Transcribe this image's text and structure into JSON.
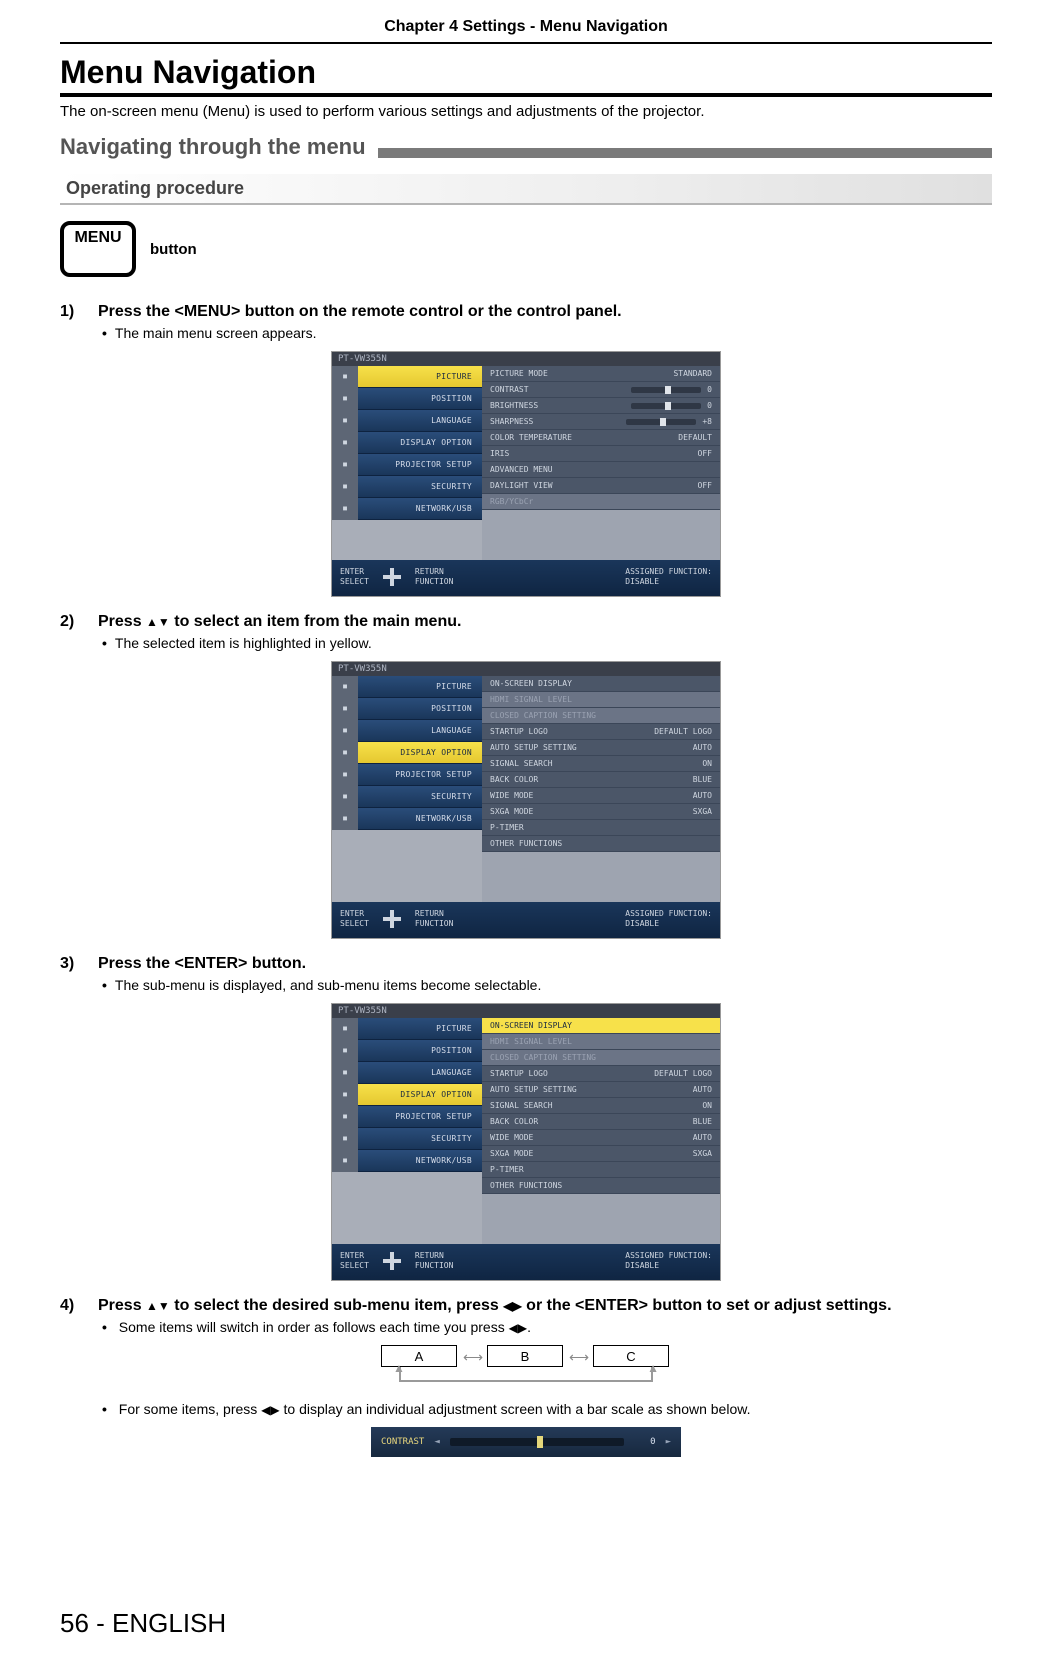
{
  "chapter_bar": "Chapter 4   Settings - Menu Navigation",
  "title": "Menu Navigation",
  "intro": "The on-screen menu (Menu) is used to perform various settings and adjustments of the projector.",
  "h2_nav": "Navigating through the menu",
  "h3_op": "Operating procedure",
  "menu_button_text": "MENU",
  "menu_button_label": "button",
  "steps": {
    "s1": {
      "num": "1)",
      "text": "Press the <MENU> button on the remote control or the control panel.",
      "bullet": "The main menu screen appears."
    },
    "s2": {
      "num": "2)",
      "pre": "Press ",
      "post": " to select an item from the main menu.",
      "bullet": "The selected item is highlighted in yellow."
    },
    "s3": {
      "num": "3)",
      "text": "Press the <ENTER> button.",
      "bullet": "The sub-menu is displayed, and sub-menu items become selectable."
    },
    "s4": {
      "num": "4)",
      "pre": "Press ",
      "mid": " to select the desired sub-menu item, press ",
      "post": " or the <ENTER> button to set or adjust settings.",
      "bullet1_pre": "Some items will switch in order as follows each time you press ",
      "bullet1_post": ".",
      "bullet2_pre": "For some items, press ",
      "bullet2_post": " to display an individual adjustment screen with a bar scale as shown below."
    }
  },
  "osd": {
    "model": "PT-VW355N",
    "side": [
      "PICTURE",
      "POSITION",
      "LANGUAGE",
      "DISPLAY OPTION",
      "PROJECTOR SETUP",
      "SECURITY",
      "NETWORK/USB"
    ],
    "fig1_right": [
      {
        "l": "PICTURE MODE",
        "v": "STANDARD"
      },
      {
        "l": "CONTRAST",
        "bar": true,
        "v": "0"
      },
      {
        "l": "BRIGHTNESS",
        "bar": true,
        "v": "0"
      },
      {
        "l": "SHARPNESS",
        "bar": true,
        "v": "+8"
      },
      {
        "l": "COLOR TEMPERATURE",
        "v": "DEFAULT"
      },
      {
        "l": "IRIS",
        "v": "OFF"
      },
      {
        "l": "ADVANCED MENU",
        "v": ""
      },
      {
        "l": "DAYLIGHT VIEW",
        "v": "OFF"
      },
      {
        "l": "RGB/YCbCr",
        "v": "",
        "dim": true
      }
    ],
    "fig23_right": [
      {
        "l": "ON-SCREEN DISPLAY",
        "v": ""
      },
      {
        "l": "HDMI SIGNAL LEVEL",
        "v": "",
        "dim": true
      },
      {
        "l": "CLOSED CAPTION SETTING",
        "v": "",
        "dim": true
      },
      {
        "l": "STARTUP LOGO",
        "v": "DEFAULT LOGO"
      },
      {
        "l": "AUTO SETUP SETTING",
        "v": "AUTO"
      },
      {
        "l": "SIGNAL SEARCH",
        "v": "ON"
      },
      {
        "l": "BACK COLOR",
        "v": "BLUE"
      },
      {
        "l": "WIDE MODE",
        "v": "AUTO"
      },
      {
        "l": "SXGA MODE",
        "v": "SXGA"
      },
      {
        "l": "P-TIMER",
        "v": ""
      },
      {
        "l": "OTHER FUNCTIONS",
        "v": ""
      }
    ],
    "foot": {
      "enter": "ENTER",
      "select": "SELECT",
      "return": "RETURN",
      "function": "FUNCTION",
      "assigned": "ASSIGNED FUNCTION:",
      "disable": "DISABLE"
    }
  },
  "cycle": {
    "a": "A",
    "b": "B",
    "c": "C"
  },
  "contrast_bar": {
    "label": "CONTRAST",
    "value": "0"
  },
  "page_foot": "56 - ENGLISH"
}
